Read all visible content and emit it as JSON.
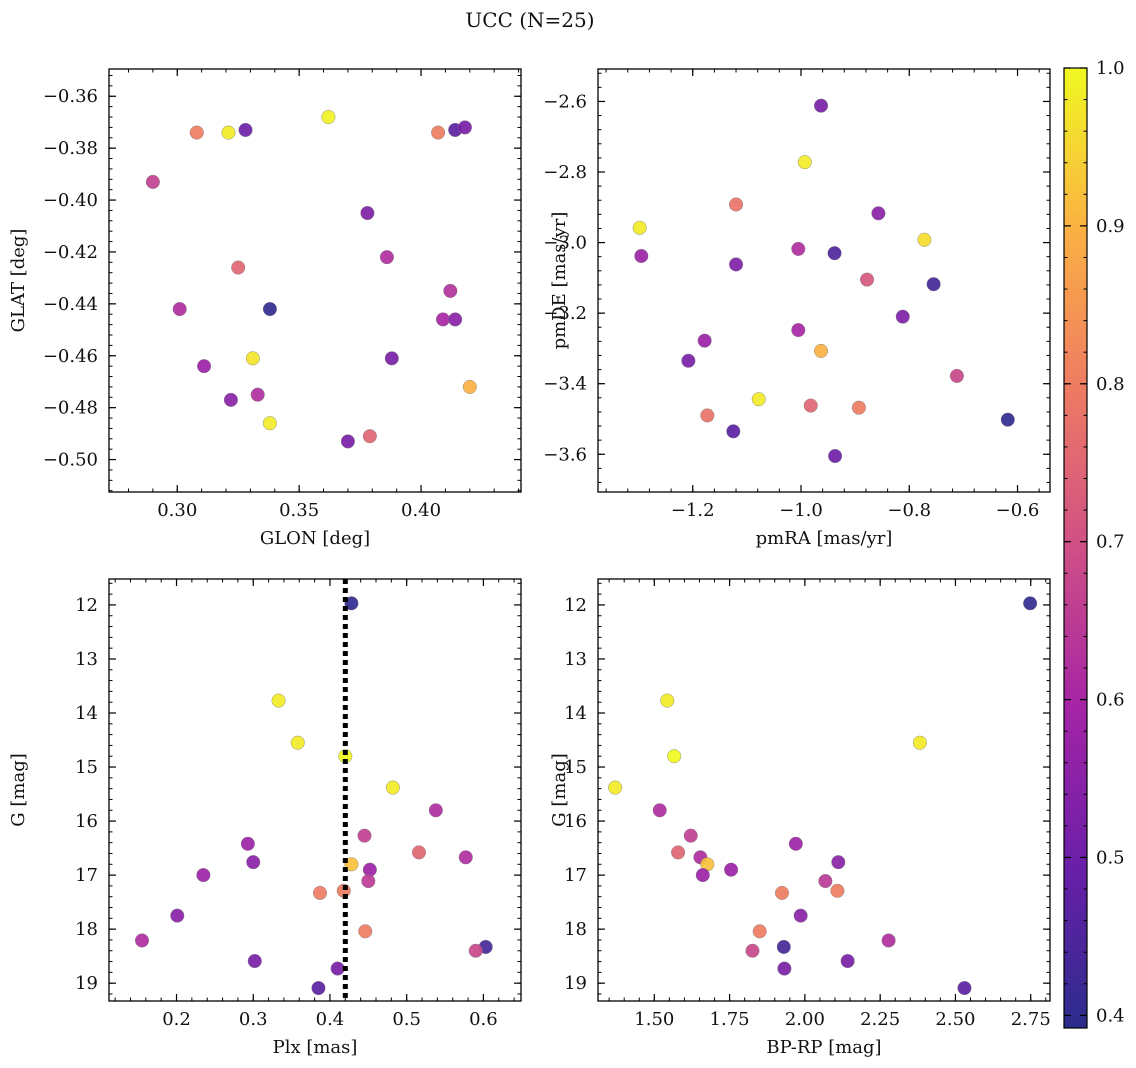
{
  "chart_data": {
    "title": "UCC (N=25)",
    "type": "scatter",
    "colorbar": {
      "range": [
        0.392,
        1.0
      ],
      "colors": [
        "#2b2c8c",
        "#6a1fa8",
        "#a424a6",
        "#cf4f86",
        "#ee7b63",
        "#fbb143",
        "#f0f921"
      ],
      "ticks": [
        "0.4",
        "0.5",
        "0.6",
        "0.7",
        "0.8",
        "0.9",
        "1.0"
      ]
    },
    "panels": [
      {
        "xlabel": "GLON [deg]",
        "ylabel": "GLAT [deg]",
        "xlim": [
          0.272,
          0.441
        ],
        "ylim": [
          -0.5125,
          -0.3495
        ],
        "y_inverted": false,
        "xticks": [
          "0.30",
          "0.35",
          "0.40"
        ],
        "xtick_values": [
          0.3,
          0.35,
          0.4
        ],
        "yticks": [
          "−0.50",
          "−0.48",
          "−0.46",
          "−0.44",
          "−0.42",
          "−0.40",
          "−0.38",
          "−0.36"
        ],
        "ytick_values": [
          -0.5,
          -0.48,
          -0.46,
          -0.44,
          -0.42,
          -0.4,
          -0.38,
          -0.36
        ],
        "points": [
          {
            "x": 0.308,
            "y": -0.374,
            "c": 0.8
          },
          {
            "x": 0.321,
            "y": -0.374,
            "c": 0.98
          },
          {
            "x": 0.328,
            "y": -0.373,
            "c": 0.5
          },
          {
            "x": 0.362,
            "y": -0.368,
            "c": 0.99
          },
          {
            "x": 0.407,
            "y": -0.374,
            "c": 0.8
          },
          {
            "x": 0.414,
            "y": -0.373,
            "c": 0.47
          },
          {
            "x": 0.418,
            "y": -0.372,
            "c": 0.52
          },
          {
            "x": 0.29,
            "y": -0.393,
            "c": 0.66
          },
          {
            "x": 0.378,
            "y": -0.405,
            "c": 0.53
          },
          {
            "x": 0.386,
            "y": -0.422,
            "c": 0.62
          },
          {
            "x": 0.325,
            "y": -0.426,
            "c": 0.75
          },
          {
            "x": 0.301,
            "y": -0.442,
            "c": 0.62
          },
          {
            "x": 0.338,
            "y": -0.442,
            "c": 0.4
          },
          {
            "x": 0.412,
            "y": -0.435,
            "c": 0.63
          },
          {
            "x": 0.409,
            "y": -0.446,
            "c": 0.6
          },
          {
            "x": 0.414,
            "y": -0.446,
            "c": 0.55
          },
          {
            "x": 0.331,
            "y": -0.461,
            "c": 0.97
          },
          {
            "x": 0.388,
            "y": -0.461,
            "c": 0.52
          },
          {
            "x": 0.311,
            "y": -0.464,
            "c": 0.58
          },
          {
            "x": 0.42,
            "y": -0.472,
            "c": 0.9
          },
          {
            "x": 0.322,
            "y": -0.477,
            "c": 0.55
          },
          {
            "x": 0.333,
            "y": -0.475,
            "c": 0.62
          },
          {
            "x": 0.338,
            "y": -0.486,
            "c": 0.98
          },
          {
            "x": 0.37,
            "y": -0.493,
            "c": 0.52
          },
          {
            "x": 0.379,
            "y": -0.491,
            "c": 0.75
          }
        ]
      },
      {
        "xlabel": "pmRA [mas/yr]",
        "ylabel": "pmDE [mas/yr]",
        "xlim": [
          -1.375,
          -0.54
        ],
        "ylim": [
          -3.707,
          -2.508
        ],
        "y_inverted": false,
        "xticks": [
          "−1.2",
          "−1.0",
          "−0.8",
          "−0.6"
        ],
        "xtick_values": [
          -1.2,
          -1.0,
          -0.8,
          -0.6
        ],
        "yticks": [
          "−3.6",
          "−3.4",
          "−3.2",
          "−3.0",
          "−2.8",
          "−2.6"
        ],
        "ytick_values": [
          -3.6,
          -3.4,
          -3.2,
          -3.0,
          -2.8,
          -2.6
        ],
        "points": [
          {
            "x": -0.963,
            "y": -2.612,
            "c": 0.52
          },
          {
            "x": -0.993,
            "y": -2.772,
            "c": 0.98
          },
          {
            "x": -1.12,
            "y": -2.892,
            "c": 0.78
          },
          {
            "x": -0.857,
            "y": -2.917,
            "c": 0.55
          },
          {
            "x": -1.298,
            "y": -2.958,
            "c": 0.98
          },
          {
            "x": -0.772,
            "y": -2.992,
            "c": 0.96
          },
          {
            "x": -1.295,
            "y": -3.038,
            "c": 0.58
          },
          {
            "x": -1.005,
            "y": -3.018,
            "c": 0.62
          },
          {
            "x": -0.938,
            "y": -3.03,
            "c": 0.45
          },
          {
            "x": -1.12,
            "y": -3.062,
            "c": 0.53
          },
          {
            "x": -0.878,
            "y": -3.105,
            "c": 0.72
          },
          {
            "x": -0.755,
            "y": -3.118,
            "c": 0.43
          },
          {
            "x": -0.812,
            "y": -3.21,
            "c": 0.53
          },
          {
            "x": -1.005,
            "y": -3.248,
            "c": 0.6
          },
          {
            "x": -1.178,
            "y": -3.278,
            "c": 0.58
          },
          {
            "x": -0.963,
            "y": -3.307,
            "c": 0.9
          },
          {
            "x": -1.208,
            "y": -3.335,
            "c": 0.52
          },
          {
            "x": -0.712,
            "y": -3.378,
            "c": 0.68
          },
          {
            "x": -1.078,
            "y": -3.444,
            "c": 0.98
          },
          {
            "x": -0.982,
            "y": -3.462,
            "c": 0.75
          },
          {
            "x": -0.893,
            "y": -3.468,
            "c": 0.8
          },
          {
            "x": -1.173,
            "y": -3.49,
            "c": 0.78
          },
          {
            "x": -0.618,
            "y": -3.502,
            "c": 0.4
          },
          {
            "x": -1.125,
            "y": -3.535,
            "c": 0.47
          },
          {
            "x": -0.937,
            "y": -3.605,
            "c": 0.5
          }
        ]
      },
      {
        "xlabel": "Plx [mas]",
        "ylabel": "G [mag]",
        "xlim": [
          0.112,
          0.649
        ],
        "ylim": [
          19.33,
          11.52
        ],
        "y_inverted": true,
        "xticks": [
          "0.2",
          "0.3",
          "0.4",
          "0.5",
          "0.6"
        ],
        "xtick_values": [
          0.2,
          0.3,
          0.4,
          0.5,
          0.6
        ],
        "yticks": [
          "12",
          "13",
          "14",
          "15",
          "16",
          "17",
          "18",
          "19"
        ],
        "ytick_values": [
          12,
          13,
          14,
          15,
          16,
          17,
          18,
          19
        ],
        "vline": {
          "x": 0.42
        },
        "points": [
          {
            "x": 0.428,
            "y": 11.97,
            "c": 0.4
          },
          {
            "x": 0.333,
            "y": 13.77,
            "c": 0.98
          },
          {
            "x": 0.358,
            "y": 14.55,
            "c": 0.98
          },
          {
            "x": 0.42,
            "y": 14.8,
            "c": 1.0
          },
          {
            "x": 0.482,
            "y": 15.38,
            "c": 0.98
          },
          {
            "x": 0.538,
            "y": 15.8,
            "c": 0.62
          },
          {
            "x": 0.445,
            "y": 16.27,
            "c": 0.66
          },
          {
            "x": 0.293,
            "y": 16.42,
            "c": 0.58
          },
          {
            "x": 0.516,
            "y": 16.58,
            "c": 0.75
          },
          {
            "x": 0.577,
            "y": 16.67,
            "c": 0.62
          },
          {
            "x": 0.3,
            "y": 16.76,
            "c": 0.55
          },
          {
            "x": 0.428,
            "y": 16.8,
            "c": 0.92
          },
          {
            "x": 0.452,
            "y": 16.9,
            "c": 0.58
          },
          {
            "x": 0.235,
            "y": 17.0,
            "c": 0.58
          },
          {
            "x": 0.45,
            "y": 17.11,
            "c": 0.65
          },
          {
            "x": 0.387,
            "y": 17.33,
            "c": 0.8
          },
          {
            "x": 0.418,
            "y": 17.29,
            "c": 0.8
          },
          {
            "x": 0.201,
            "y": 17.75,
            "c": 0.55
          },
          {
            "x": 0.446,
            "y": 18.04,
            "c": 0.8
          },
          {
            "x": 0.155,
            "y": 18.21,
            "c": 0.62
          },
          {
            "x": 0.603,
            "y": 18.33,
            "c": 0.43
          },
          {
            "x": 0.59,
            "y": 18.4,
            "c": 0.68
          },
          {
            "x": 0.302,
            "y": 18.59,
            "c": 0.52
          },
          {
            "x": 0.41,
            "y": 18.73,
            "c": 0.52
          },
          {
            "x": 0.385,
            "y": 19.09,
            "c": 0.47
          }
        ]
      },
      {
        "xlabel": "BP-RP [mag]",
        "ylabel": "G [mag]",
        "xlim": [
          1.313,
          2.814
        ],
        "ylim": [
          19.33,
          11.52
        ],
        "y_inverted": true,
        "xticks": [
          "1.50",
          "1.75",
          "2.00",
          "2.25",
          "2.50",
          "2.75"
        ],
        "xtick_values": [
          1.5,
          1.75,
          2.0,
          2.25,
          2.5,
          2.75
        ],
        "yticks": [
          "12",
          "13",
          "14",
          "15",
          "16",
          "17",
          "18",
          "19"
        ],
        "ytick_values": [
          12,
          13,
          14,
          15,
          16,
          17,
          18,
          19
        ],
        "points": [
          {
            "x": 2.748,
            "y": 11.97,
            "c": 0.4
          },
          {
            "x": 1.543,
            "y": 13.77,
            "c": 0.98
          },
          {
            "x": 2.382,
            "y": 14.55,
            "c": 0.98
          },
          {
            "x": 1.566,
            "y": 14.8,
            "c": 1.0
          },
          {
            "x": 1.37,
            "y": 15.38,
            "c": 0.98
          },
          {
            "x": 1.518,
            "y": 15.8,
            "c": 0.62
          },
          {
            "x": 1.621,
            "y": 16.27,
            "c": 0.66
          },
          {
            "x": 1.97,
            "y": 16.42,
            "c": 0.58
          },
          {
            "x": 1.579,
            "y": 16.58,
            "c": 0.75
          },
          {
            "x": 1.653,
            "y": 16.67,
            "c": 0.62
          },
          {
            "x": 2.111,
            "y": 16.76,
            "c": 0.55
          },
          {
            "x": 1.676,
            "y": 16.8,
            "c": 0.92
          },
          {
            "x": 1.755,
            "y": 16.9,
            "c": 0.58
          },
          {
            "x": 1.661,
            "y": 17.0,
            "c": 0.58
          },
          {
            "x": 2.068,
            "y": 17.11,
            "c": 0.65
          },
          {
            "x": 1.924,
            "y": 17.33,
            "c": 0.8
          },
          {
            "x": 2.108,
            "y": 17.29,
            "c": 0.8
          },
          {
            "x": 1.986,
            "y": 17.75,
            "c": 0.55
          },
          {
            "x": 1.85,
            "y": 18.04,
            "c": 0.8
          },
          {
            "x": 2.278,
            "y": 18.21,
            "c": 0.62
          },
          {
            "x": 1.93,
            "y": 18.33,
            "c": 0.43
          },
          {
            "x": 1.826,
            "y": 18.4,
            "c": 0.68
          },
          {
            "x": 2.142,
            "y": 18.59,
            "c": 0.52
          },
          {
            "x": 1.932,
            "y": 18.73,
            "c": 0.52
          },
          {
            "x": 2.53,
            "y": 19.09,
            "c": 0.47
          }
        ]
      }
    ]
  }
}
